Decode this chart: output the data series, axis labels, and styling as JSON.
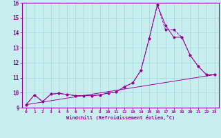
{
  "xlabel": "Windchill (Refroidissement éolien,°C)",
  "xlim": [
    -0.5,
    23.5
  ],
  "ylim": [
    9,
    16
  ],
  "yticks": [
    9,
    10,
    11,
    12,
    13,
    14,
    15,
    16
  ],
  "xticks": [
    0,
    1,
    2,
    3,
    4,
    5,
    6,
    7,
    8,
    9,
    10,
    11,
    12,
    13,
    14,
    15,
    16,
    17,
    18,
    19,
    20,
    21,
    22,
    23
  ],
  "background_color": "#c8eef0",
  "line_color": "#990099",
  "grid_color": "#a0d8d8",
  "series1_x": [
    0,
    1,
    2,
    3,
    4,
    5,
    6,
    7,
    8,
    9,
    10,
    11,
    12,
    13,
    14,
    15,
    16,
    17,
    18,
    19,
    20,
    21,
    22,
    23
  ],
  "series1_y": [
    9.2,
    9.85,
    9.4,
    9.9,
    9.95,
    9.88,
    9.8,
    9.8,
    9.8,
    9.85,
    9.98,
    10.05,
    10.4,
    10.65,
    11.5,
    13.6,
    15.85,
    14.5,
    13.7,
    13.7,
    12.5,
    11.75,
    11.2,
    11.2
  ],
  "series2_x": [
    0,
    1,
    2,
    3,
    4,
    5,
    6,
    7,
    8,
    9,
    10,
    11,
    12,
    13,
    14,
    15,
    16,
    17,
    18,
    19,
    20,
    21,
    22,
    23
  ],
  "series2_y": [
    9.2,
    9.85,
    9.4,
    9.9,
    9.95,
    9.88,
    9.8,
    9.8,
    9.8,
    9.85,
    9.98,
    10.05,
    10.4,
    10.65,
    11.5,
    13.6,
    15.85,
    14.2,
    14.2,
    13.7,
    12.5,
    11.75,
    11.2,
    11.2
  ],
  "series3_x": [
    0,
    23
  ],
  "series3_y": [
    9.2,
    11.2
  ]
}
